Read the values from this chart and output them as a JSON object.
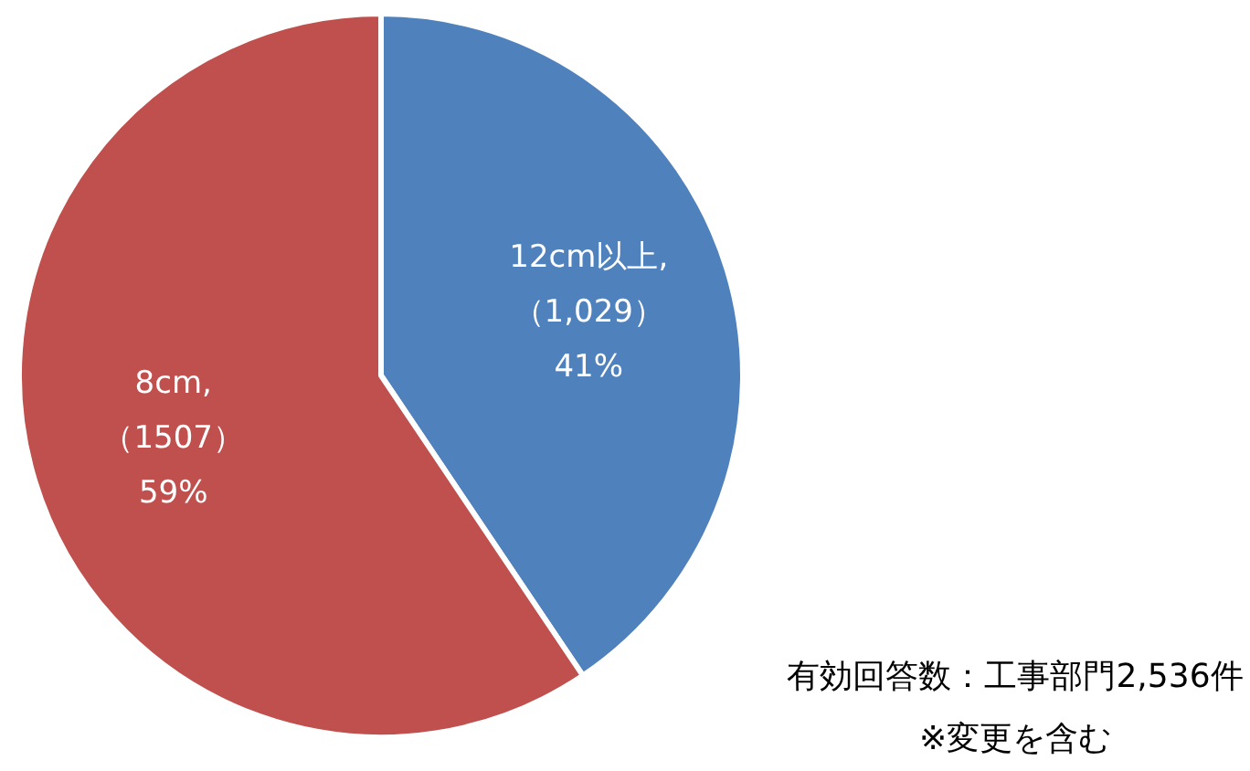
{
  "chart_data": {
    "type": "pie",
    "categories": [
      "12cm以上",
      "8cm"
    ],
    "values": [
      1029,
      1507
    ],
    "colors": [
      "#4f81bd",
      "#c0504d"
    ],
    "value_labels": [
      ",\n（1,029）\n41%",
      ",\n（1507）\n59%"
    ],
    "annotations": [
      "有効回答数：工事部門2,536件",
      "※変更を含む"
    ]
  }
}
